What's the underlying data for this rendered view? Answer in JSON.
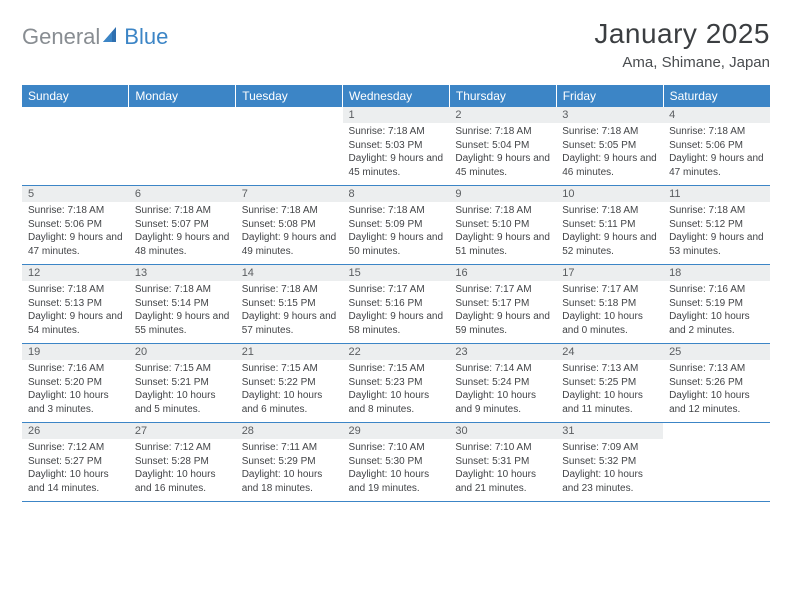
{
  "colors": {
    "header_bg": "#3c85c6",
    "header_text": "#ffffff",
    "rule": "#3c85c6",
    "daynum_bg": "#eceeef",
    "body_text": "#424447",
    "logo_gray": "#888d92",
    "logo_blue": "#3c85c6",
    "title_text": "#3b3e41"
  },
  "logo": {
    "part1": "General",
    "part2": "Blue"
  },
  "title": "January 2025",
  "location": "Ama, Shimane, Japan",
  "day_headers": [
    "Sunday",
    "Monday",
    "Tuesday",
    "Wednesday",
    "Thursday",
    "Friday",
    "Saturday"
  ],
  "weeks": [
    [
      null,
      null,
      null,
      {
        "d": "1",
        "sr": "7:18 AM",
        "ss": "5:03 PM",
        "dl": "9 hours and 45 minutes."
      },
      {
        "d": "2",
        "sr": "7:18 AM",
        "ss": "5:04 PM",
        "dl": "9 hours and 45 minutes."
      },
      {
        "d": "3",
        "sr": "7:18 AM",
        "ss": "5:05 PM",
        "dl": "9 hours and 46 minutes."
      },
      {
        "d": "4",
        "sr": "7:18 AM",
        "ss": "5:06 PM",
        "dl": "9 hours and 47 minutes."
      }
    ],
    [
      {
        "d": "5",
        "sr": "7:18 AM",
        "ss": "5:06 PM",
        "dl": "9 hours and 47 minutes."
      },
      {
        "d": "6",
        "sr": "7:18 AM",
        "ss": "5:07 PM",
        "dl": "9 hours and 48 minutes."
      },
      {
        "d": "7",
        "sr": "7:18 AM",
        "ss": "5:08 PM",
        "dl": "9 hours and 49 minutes."
      },
      {
        "d": "8",
        "sr": "7:18 AM",
        "ss": "5:09 PM",
        "dl": "9 hours and 50 minutes."
      },
      {
        "d": "9",
        "sr": "7:18 AM",
        "ss": "5:10 PM",
        "dl": "9 hours and 51 minutes."
      },
      {
        "d": "10",
        "sr": "7:18 AM",
        "ss": "5:11 PM",
        "dl": "9 hours and 52 minutes."
      },
      {
        "d": "11",
        "sr": "7:18 AM",
        "ss": "5:12 PM",
        "dl": "9 hours and 53 minutes."
      }
    ],
    [
      {
        "d": "12",
        "sr": "7:18 AM",
        "ss": "5:13 PM",
        "dl": "9 hours and 54 minutes."
      },
      {
        "d": "13",
        "sr": "7:18 AM",
        "ss": "5:14 PM",
        "dl": "9 hours and 55 minutes."
      },
      {
        "d": "14",
        "sr": "7:18 AM",
        "ss": "5:15 PM",
        "dl": "9 hours and 57 minutes."
      },
      {
        "d": "15",
        "sr": "7:17 AM",
        "ss": "5:16 PM",
        "dl": "9 hours and 58 minutes."
      },
      {
        "d": "16",
        "sr": "7:17 AM",
        "ss": "5:17 PM",
        "dl": "9 hours and 59 minutes."
      },
      {
        "d": "17",
        "sr": "7:17 AM",
        "ss": "5:18 PM",
        "dl": "10 hours and 0 minutes."
      },
      {
        "d": "18",
        "sr": "7:16 AM",
        "ss": "5:19 PM",
        "dl": "10 hours and 2 minutes."
      }
    ],
    [
      {
        "d": "19",
        "sr": "7:16 AM",
        "ss": "5:20 PM",
        "dl": "10 hours and 3 minutes."
      },
      {
        "d": "20",
        "sr": "7:15 AM",
        "ss": "5:21 PM",
        "dl": "10 hours and 5 minutes."
      },
      {
        "d": "21",
        "sr": "7:15 AM",
        "ss": "5:22 PM",
        "dl": "10 hours and 6 minutes."
      },
      {
        "d": "22",
        "sr": "7:15 AM",
        "ss": "5:23 PM",
        "dl": "10 hours and 8 minutes."
      },
      {
        "d": "23",
        "sr": "7:14 AM",
        "ss": "5:24 PM",
        "dl": "10 hours and 9 minutes."
      },
      {
        "d": "24",
        "sr": "7:13 AM",
        "ss": "5:25 PM",
        "dl": "10 hours and 11 minutes."
      },
      {
        "d": "25",
        "sr": "7:13 AM",
        "ss": "5:26 PM",
        "dl": "10 hours and 12 minutes."
      }
    ],
    [
      {
        "d": "26",
        "sr": "7:12 AM",
        "ss": "5:27 PM",
        "dl": "10 hours and 14 minutes."
      },
      {
        "d": "27",
        "sr": "7:12 AM",
        "ss": "5:28 PM",
        "dl": "10 hours and 16 minutes."
      },
      {
        "d": "28",
        "sr": "7:11 AM",
        "ss": "5:29 PM",
        "dl": "10 hours and 18 minutes."
      },
      {
        "d": "29",
        "sr": "7:10 AM",
        "ss": "5:30 PM",
        "dl": "10 hours and 19 minutes."
      },
      {
        "d": "30",
        "sr": "7:10 AM",
        "ss": "5:31 PM",
        "dl": "10 hours and 21 minutes."
      },
      {
        "d": "31",
        "sr": "7:09 AM",
        "ss": "5:32 PM",
        "dl": "10 hours and 23 minutes."
      },
      null
    ]
  ],
  "labels": {
    "sunrise": "Sunrise:",
    "sunset": "Sunset:",
    "daylight": "Daylight:"
  }
}
